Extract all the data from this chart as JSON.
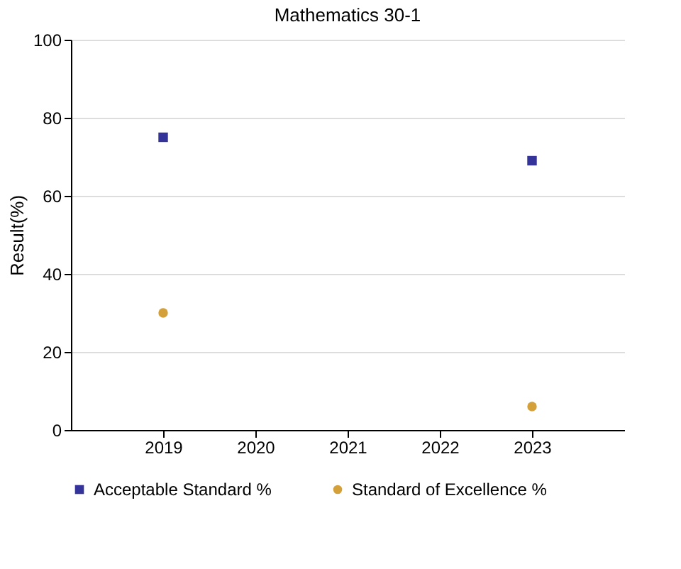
{
  "chart_data": {
    "type": "scatter",
    "title": "Mathematics 30-1",
    "ylabel": "Result(%)",
    "categories": [
      "2019",
      "2020",
      "2021",
      "2022",
      "2023"
    ],
    "series": [
      {
        "name": "Acceptable Standard %",
        "color": "#333399",
        "marker": "square",
        "values": [
          75,
          null,
          null,
          null,
          69
        ]
      },
      {
        "name": "Standard of Excellence %",
        "color": "#d4a03a",
        "marker": "circle",
        "values": [
          30,
          null,
          null,
          null,
          6
        ]
      }
    ],
    "ylim": [
      0,
      100
    ],
    "yticks": [
      0,
      20,
      40,
      60,
      80,
      100
    ],
    "grid": "y",
    "legend": "bottom"
  }
}
